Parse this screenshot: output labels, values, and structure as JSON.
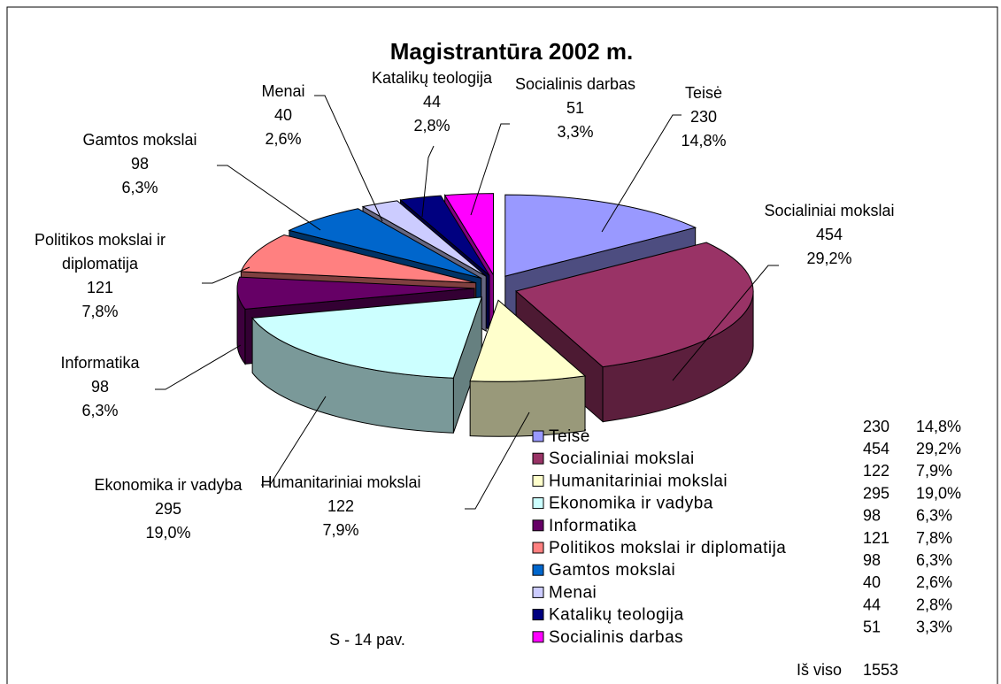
{
  "chart_data": {
    "type": "pie",
    "title": "Magistrantūra 2002 m.",
    "categories": [
      "Teisė",
      "Socialiniai mokslai",
      "Humanitariniai mokslai",
      "Ekonomika ir vadyba",
      "Informatika",
      "Politikos mokslai ir diplomatija",
      "Gamtos mokslai",
      "Menai",
      "Katalikų teologija",
      "Socialinis darbas"
    ],
    "values": [
      230,
      454,
      122,
      295,
      98,
      121,
      98,
      40,
      44,
      51
    ],
    "percents": [
      14.8,
      29.2,
      7.9,
      19.0,
      6.3,
      7.8,
      6.3,
      2.6,
      2.8,
      3.3
    ],
    "percent_labels": [
      "14,8%",
      "29,2%",
      "7,9%",
      "19,0%",
      "6,3%",
      "7,8%",
      "6,3%",
      "2,6%",
      "2,8%",
      "3,3%"
    ],
    "colors": [
      "#9999ff",
      "#993366",
      "#ffffcc",
      "#ccffff",
      "#660066",
      "#ff8080",
      "#0066cc",
      "#ccccff",
      "#000080",
      "#ff00ff"
    ],
    "total_label": "Iš viso",
    "total": 1553,
    "caption": "S - 14 pav."
  }
}
